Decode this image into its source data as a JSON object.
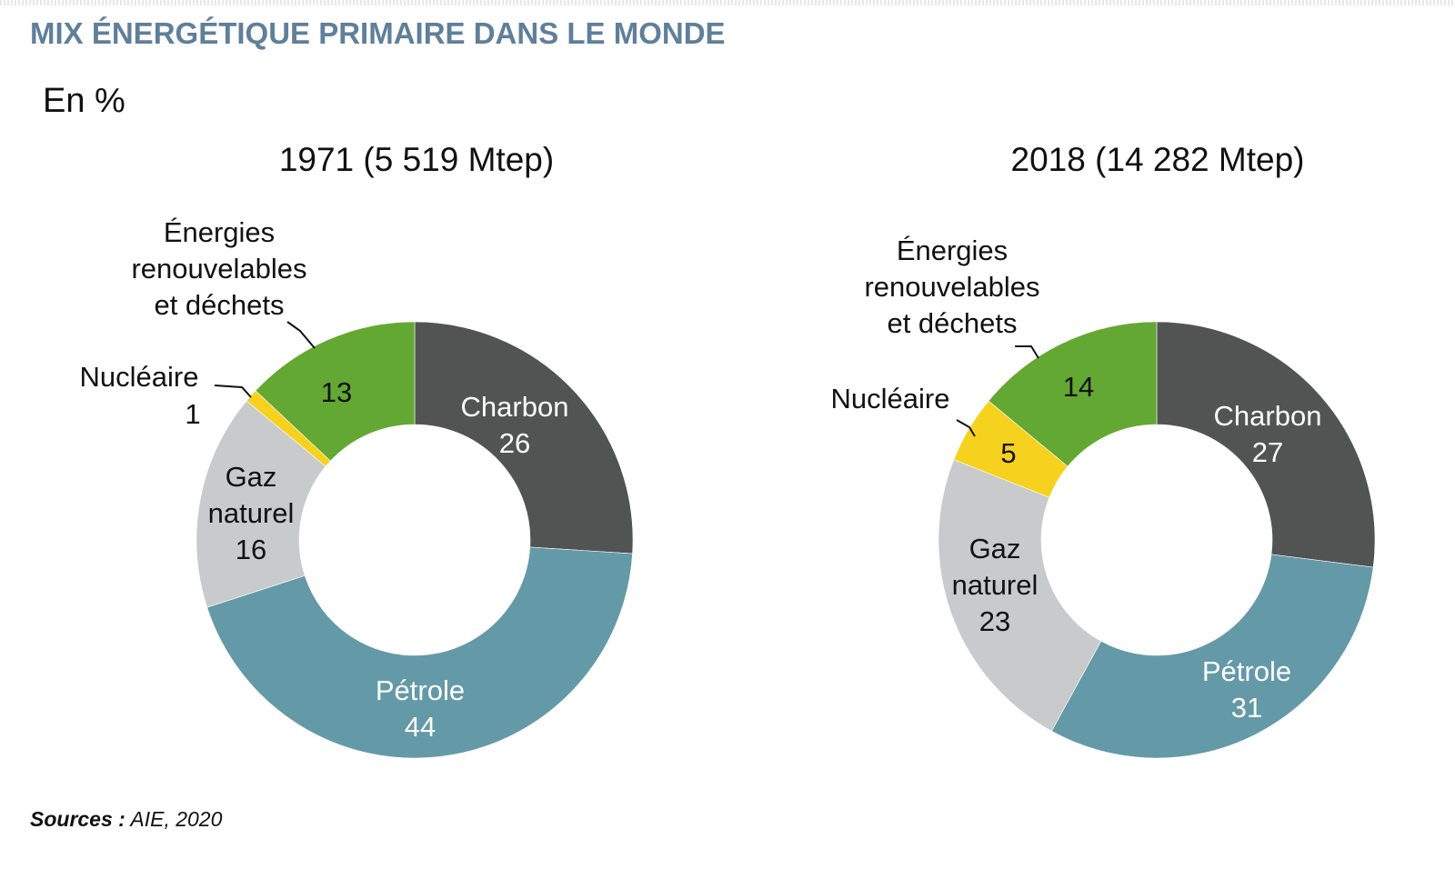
{
  "title": "MIX ÉNERGÉTIQUE PRIMAIRE DANS LE MONDE",
  "unit_label": "En %",
  "source": {
    "prefix": "Sources :",
    "text": "AIE, 2020"
  },
  "colors": {
    "Charbon": "#525453",
    "Pétrole": "#6499a8",
    "Gaz naturel": "#c9cacc",
    "Nucléaire": "#f6d21f",
    "Énergies renouvelables et déchets": "#63a832"
  },
  "chart_data": [
    {
      "type": "pie",
      "donut": true,
      "title": "1971 (5 519 Mtep)",
      "categories": [
        "Charbon",
        "Pétrole",
        "Gaz naturel",
        "Nucléaire",
        "Énergies renouvelables et déchets"
      ],
      "values": [
        26,
        44,
        16,
        1,
        13
      ],
      "value_labels": [
        "26",
        "44",
        "16",
        "1",
        "13"
      ]
    },
    {
      "type": "pie",
      "donut": true,
      "title": "2018 (14 282 Mtep)",
      "categories": [
        "Charbon",
        "Pétrole",
        "Gaz naturel",
        "Nucléaire",
        "Énergies renouvelables et déchets"
      ],
      "values": [
        27,
        31,
        23,
        5,
        14
      ],
      "value_labels": [
        "27",
        "31",
        "23",
        "5",
        "14"
      ]
    }
  ]
}
